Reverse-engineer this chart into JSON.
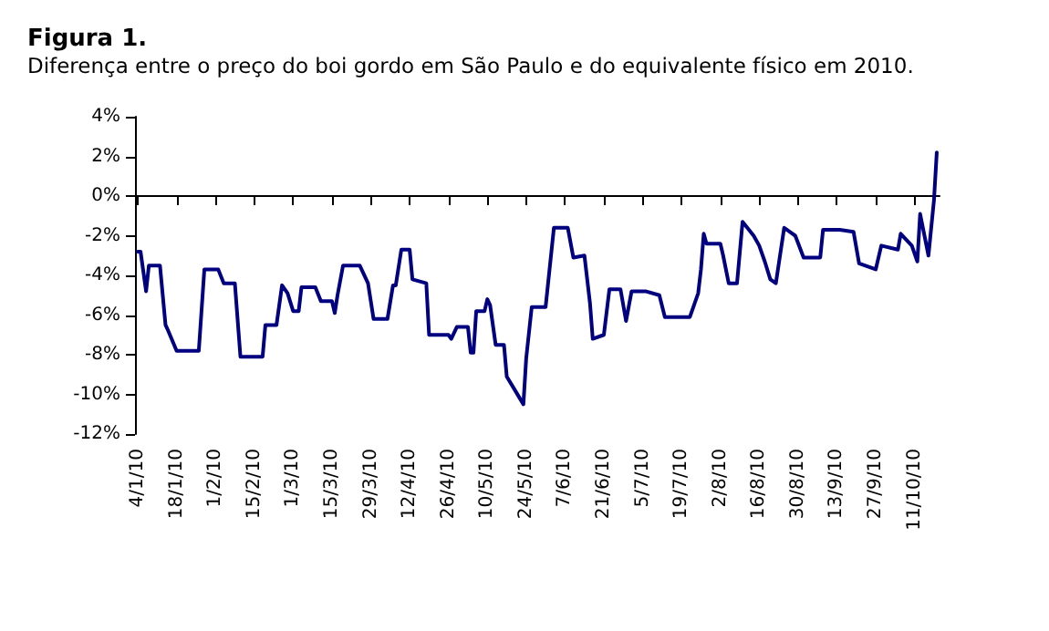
{
  "chart_data": {
    "type": "line",
    "title": "Figura 1.",
    "subtitle": "Diferença entre o preço do boi gordo em São Paulo e do equivalente físico em 2010.",
    "x": [
      "2010-01-04",
      "2010-01-05",
      "2010-01-06",
      "2010-01-07",
      "2010-01-08",
      "2010-01-12",
      "2010-01-14",
      "2010-01-15",
      "2010-01-18",
      "2010-01-26",
      "2010-01-28",
      "2010-02-02",
      "2010-02-04",
      "2010-02-08",
      "2010-02-10",
      "2010-02-18",
      "2010-02-19",
      "2010-02-23",
      "2010-02-25",
      "2010-02-27",
      "2010-03-01",
      "2010-03-03",
      "2010-03-04",
      "2010-03-09",
      "2010-03-11",
      "2010-03-15",
      "2010-03-16",
      "2010-03-17",
      "2010-03-19",
      "2010-03-25",
      "2010-03-28",
      "2010-03-30",
      "2010-04-04",
      "2010-04-06",
      "2010-04-07",
      "2010-04-09",
      "2010-04-12",
      "2010-04-13",
      "2010-04-18",
      "2010-04-19",
      "2010-04-26",
      "2010-04-27",
      "2010-04-29",
      "2010-05-03",
      "2010-05-04",
      "2010-05-05",
      "2010-05-06",
      "2010-05-09",
      "2010-05-10",
      "2010-05-11",
      "2010-05-13",
      "2010-05-16",
      "2010-05-17",
      "2010-05-20",
      "2010-05-23",
      "2010-05-24",
      "2010-05-26",
      "2010-05-31",
      "2010-06-03",
      "2010-06-08",
      "2010-06-10",
      "2010-06-14",
      "2010-06-16",
      "2010-06-17",
      "2010-06-21",
      "2010-06-23",
      "2010-06-27",
      "2010-06-29",
      "2010-07-01",
      "2010-07-06",
      "2010-07-11",
      "2010-07-13",
      "2010-07-22",
      "2010-07-25",
      "2010-07-26",
      "2010-07-27",
      "2010-07-28",
      "2010-08-02",
      "2010-08-03",
      "2010-08-05",
      "2010-08-08",
      "2010-08-10",
      "2010-08-14",
      "2010-08-16",
      "2010-08-18",
      "2010-08-20",
      "2010-08-22",
      "2010-08-25",
      "2010-08-29",
      "2010-09-01",
      "2010-09-07",
      "2010-09-08",
      "2010-09-14",
      "2010-09-19",
      "2010-09-21",
      "2010-09-27",
      "2010-09-29",
      "2010-10-05",
      "2010-10-06",
      "2010-10-10",
      "2010-10-12",
      "2010-10-13",
      "2010-10-16",
      "2010-10-18",
      "2010-10-19"
    ],
    "series": [
      {
        "color": "#000080",
        "values": [
          -2.8,
          -2.8,
          -3.8,
          -4.8,
          -3.5,
          -3.5,
          -6.5,
          -6.8,
          -7.8,
          -7.8,
          -3.7,
          -3.7,
          -4.4,
          -4.4,
          -8.1,
          -8.1,
          -6.5,
          -6.5,
          -4.5,
          -4.9,
          -5.8,
          -5.8,
          -4.6,
          -4.6,
          -5.3,
          -5.3,
          -5.9,
          -5.0,
          -3.5,
          -3.5,
          -4.4,
          -6.2,
          -6.2,
          -4.5,
          -4.5,
          -2.7,
          -2.7,
          -4.2,
          -4.4,
          -7.0,
          -7.0,
          -7.2,
          -6.6,
          -6.6,
          -7.9,
          -7.9,
          -5.8,
          -5.8,
          -5.2,
          -5.5,
          -7.5,
          -7.5,
          -9.1,
          -9.8,
          -10.5,
          -8.2,
          -5.6,
          -5.6,
          -1.6,
          -1.6,
          -3.1,
          -3.0,
          -5.4,
          -7.2,
          -7.0,
          -4.7,
          -4.7,
          -6.3,
          -4.8,
          -4.8,
          -5.0,
          -6.1,
          -6.1,
          -4.9,
          -3.7,
          -1.9,
          -2.4,
          -2.4,
          -3.0,
          -4.4,
          -4.4,
          -1.3,
          -2.0,
          -2.5,
          -3.3,
          -4.2,
          -4.4,
          -1.6,
          -2.0,
          -3.1,
          -3.1,
          -1.7,
          -1.7,
          -1.8,
          -3.4,
          -3.7,
          -2.5,
          -2.7,
          -1.9,
          -2.5,
          -3.3,
          -0.9,
          -3.0,
          -0.2,
          2.2
        ]
      }
    ],
    "xlim": [
      "2010-01-03",
      "2010-10-20"
    ],
    "xticks": [
      {
        "value": "2010-01-04",
        "label": "4/1/10"
      },
      {
        "value": "2010-01-18",
        "label": "18/1/10"
      },
      {
        "value": "2010-02-01",
        "label": "1/2/10"
      },
      {
        "value": "2010-02-15",
        "label": "15/2/10"
      },
      {
        "value": "2010-03-01",
        "label": "1/3/10"
      },
      {
        "value": "2010-03-15",
        "label": "15/3/10"
      },
      {
        "value": "2010-03-29",
        "label": "29/3/10"
      },
      {
        "value": "2010-04-12",
        "label": "12/4/10"
      },
      {
        "value": "2010-04-26",
        "label": "26/4/10"
      },
      {
        "value": "2010-05-10",
        "label": "10/5/10"
      },
      {
        "value": "2010-05-24",
        "label": "24/5/10"
      },
      {
        "value": "2010-06-07",
        "label": "7/6/10"
      },
      {
        "value": "2010-06-21",
        "label": "21/6/10"
      },
      {
        "value": "2010-07-05",
        "label": "5/7/10"
      },
      {
        "value": "2010-07-19",
        "label": "19/7/10"
      },
      {
        "value": "2010-08-02",
        "label": "2/8/10"
      },
      {
        "value": "2010-08-16",
        "label": "16/8/10"
      },
      {
        "value": "2010-08-30",
        "label": "30/8/10"
      },
      {
        "value": "2010-09-13",
        "label": "13/9/10"
      },
      {
        "value": "2010-09-27",
        "label": "27/9/10"
      },
      {
        "value": "2010-10-11",
        "label": "11/10/10"
      }
    ],
    "ylim": [
      -12,
      4
    ],
    "yticks": [
      {
        "value": -12,
        "label": "-12%"
      },
      {
        "value": -10,
        "label": "-10%"
      },
      {
        "value": -8,
        "label": "-8%"
      },
      {
        "value": -6,
        "label": "-6%"
      },
      {
        "value": -4,
        "label": "-4%"
      },
      {
        "value": -2,
        "label": "-2%"
      },
      {
        "value": 0,
        "label": "0%"
      },
      {
        "value": 2,
        "label": "2%"
      },
      {
        "value": 4,
        "label": "4%"
      }
    ],
    "marker": "none",
    "line_style": "solid"
  }
}
